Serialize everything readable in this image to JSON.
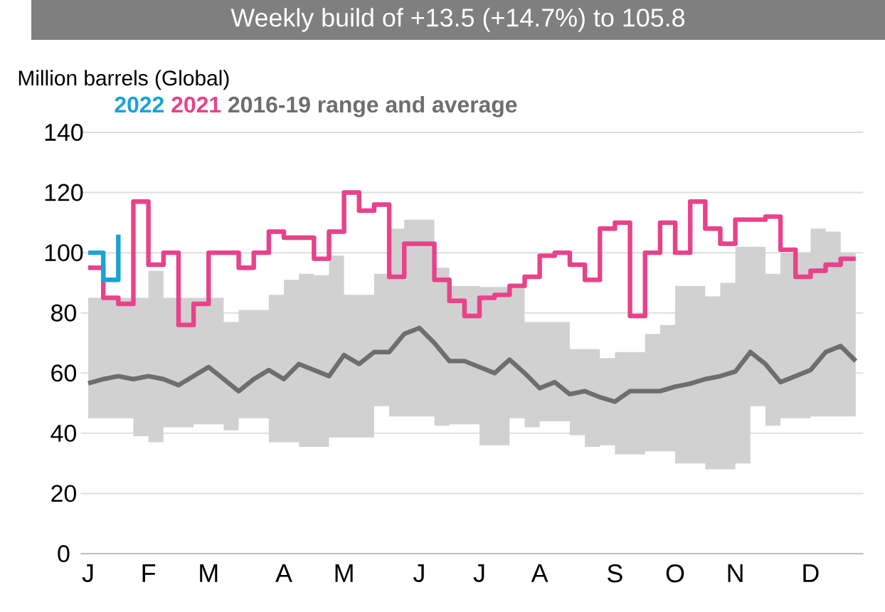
{
  "chart_data": {
    "type": "line",
    "title": "Weekly build of +13.5 (+14.7%) to 105.8",
    "ylabel": "Million barrels (Global)",
    "categories": [
      "J",
      null,
      null,
      null,
      "F",
      null,
      null,
      null,
      "M",
      null,
      null,
      null,
      null,
      "A",
      null,
      null,
      null,
      "M",
      null,
      null,
      null,
      null,
      "J",
      null,
      null,
      null,
      "J",
      null,
      null,
      null,
      "A",
      null,
      null,
      null,
      null,
      "S",
      null,
      null,
      null,
      "O",
      null,
      null,
      null,
      "N",
      null,
      null,
      null,
      null,
      "D",
      null,
      null,
      null
    ],
    "ylim": [
      0,
      140
    ],
    "yticks": [
      0,
      20,
      40,
      60,
      80,
      100,
      120,
      140
    ],
    "grid": "y",
    "legend": "top",
    "series": [
      {
        "name": "2022",
        "type": "step",
        "color": "#1aa3d6",
        "values": [
          100,
          91,
          106,
          null,
          null,
          null,
          null,
          null,
          null,
          null,
          null,
          null,
          null,
          null,
          null,
          null,
          null,
          null,
          null,
          null,
          null,
          null,
          null,
          null,
          null,
          null,
          null,
          null,
          null,
          null,
          null,
          null,
          null,
          null,
          null,
          null,
          null,
          null,
          null,
          null,
          null,
          null,
          null,
          null,
          null,
          null,
          null,
          null,
          null,
          null,
          null,
          null
        ]
      },
      {
        "name": "2021",
        "type": "step",
        "color": "#e8428a",
        "values": [
          95,
          85,
          83,
          117,
          96,
          100,
          76,
          83,
          100,
          100,
          95,
          100,
          107,
          105,
          105,
          98,
          107,
          120,
          114,
          116,
          92,
          103,
          103,
          91,
          84,
          79,
          85,
          86,
          89,
          92,
          99,
          100,
          96,
          91,
          108,
          110,
          79,
          100,
          110,
          100,
          117,
          108,
          103,
          111,
          111,
          112,
          101,
          92,
          94,
          96,
          98,
          98
        ]
      },
      {
        "name": "2016-19 range and average",
        "type": "line",
        "color": "#6e6e6e",
        "values": [
          56.6,
          58,
          59,
          58,
          59,
          58,
          56,
          59,
          62,
          58,
          54,
          58,
          61,
          58,
          63,
          61,
          59,
          66,
          63,
          67,
          67,
          73,
          75,
          70,
          64,
          64,
          62,
          60,
          64.5,
          60,
          55,
          57,
          53,
          54,
          52,
          50.5,
          54,
          54,
          54,
          55.5,
          56.5,
          58,
          59,
          60.5,
          67,
          63,
          57,
          59,
          61,
          67,
          69,
          64
        ],
        "upper": [
          85,
          85,
          85,
          85,
          94,
          85,
          85,
          85,
          85,
          77,
          81,
          81,
          86,
          91,
          93,
          92.5,
          99,
          86,
          86,
          93,
          108,
          111,
          111,
          95,
          89,
          89,
          88.6,
          88.6,
          88.6,
          77,
          77,
          77,
          68,
          68,
          65,
          67,
          67,
          73,
          76,
          89,
          89,
          85.5,
          90,
          102,
          102,
          93,
          100,
          100,
          108,
          107,
          100,
          82
        ],
        "lower": [
          45,
          45,
          45,
          39,
          37,
          42,
          42,
          43,
          43,
          41,
          45,
          45,
          37,
          37,
          35.5,
          35.5,
          38.6,
          38.6,
          38.6,
          49,
          45.6,
          45.6,
          45.6,
          42.5,
          43,
          43,
          36,
          36,
          45,
          42,
          44,
          44,
          39.4,
          35.5,
          36,
          33,
          33,
          34,
          34,
          30,
          30,
          28,
          28,
          30,
          49,
          42.5,
          45,
          45,
          45.6,
          45.6,
          45.6,
          48
        ]
      }
    ]
  }
}
